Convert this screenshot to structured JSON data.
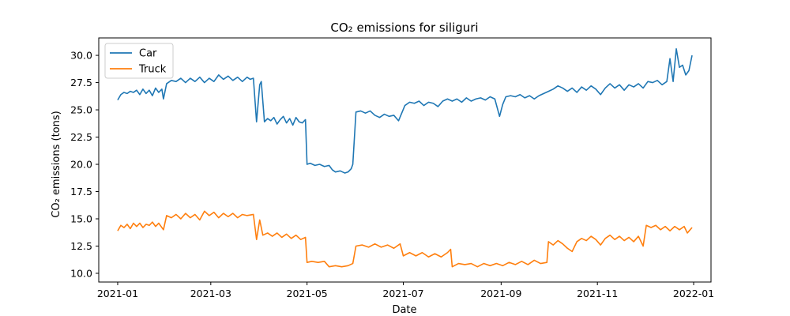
{
  "chart_data": {
    "type": "line",
    "title": "CO₂ emissions for siliguri",
    "xlabel": "Date",
    "ylabel": "CO₂ emissions (tons)",
    "xlim": [
      "2020-12-20",
      "2022-01-12"
    ],
    "ylim": [
      9.2,
      31.6
    ],
    "x_ticks": [
      {
        "date": "2021-01-01",
        "label": "2021-01"
      },
      {
        "date": "2021-03-01",
        "label": "2021-03"
      },
      {
        "date": "2021-05-01",
        "label": "2021-05"
      },
      {
        "date": "2021-07-01",
        "label": "2021-07"
      },
      {
        "date": "2021-09-01",
        "label": "2021-09"
      },
      {
        "date": "2021-11-01",
        "label": "2021-11"
      },
      {
        "date": "2022-01-01",
        "label": "2022-01"
      }
    ],
    "y_ticks": [
      {
        "value": 10.0,
        "label": "10.0"
      },
      {
        "value": 12.5,
        "label": "12.5"
      },
      {
        "value": 15.0,
        "label": "15.0"
      },
      {
        "value": 17.5,
        "label": "17.5"
      },
      {
        "value": 20.0,
        "label": "20.0"
      },
      {
        "value": 22.5,
        "label": "22.5"
      },
      {
        "value": 25.0,
        "label": "25.0"
      },
      {
        "value": 27.5,
        "label": "27.5"
      },
      {
        "value": 30.0,
        "label": "30.0"
      }
    ],
    "grid": false,
    "legend": "top-left",
    "series": [
      {
        "name": "Car",
        "color": "#1f77b4",
        "points": [
          [
            "2021-01-01",
            25.9
          ],
          [
            "2021-01-03",
            26.4
          ],
          [
            "2021-01-05",
            26.6
          ],
          [
            "2021-01-07",
            26.5
          ],
          [
            "2021-01-09",
            26.7
          ],
          [
            "2021-01-11",
            26.6
          ],
          [
            "2021-01-13",
            26.8
          ],
          [
            "2021-01-15",
            26.4
          ],
          [
            "2021-01-17",
            26.9
          ],
          [
            "2021-01-19",
            26.5
          ],
          [
            "2021-01-21",
            26.8
          ],
          [
            "2021-01-23",
            26.3
          ],
          [
            "2021-01-25",
            27.0
          ],
          [
            "2021-01-27",
            26.6
          ],
          [
            "2021-01-29",
            26.9
          ],
          [
            "2021-01-30",
            26.0
          ],
          [
            "2021-02-01",
            27.4
          ],
          [
            "2021-02-04",
            27.7
          ],
          [
            "2021-02-07",
            27.6
          ],
          [
            "2021-02-10",
            27.9
          ],
          [
            "2021-02-13",
            27.5
          ],
          [
            "2021-02-16",
            27.9
          ],
          [
            "2021-02-19",
            27.6
          ],
          [
            "2021-02-22",
            28.0
          ],
          [
            "2021-02-25",
            27.5
          ],
          [
            "2021-02-28",
            27.9
          ],
          [
            "2021-03-03",
            27.6
          ],
          [
            "2021-03-06",
            28.2
          ],
          [
            "2021-03-09",
            27.8
          ],
          [
            "2021-03-12",
            28.1
          ],
          [
            "2021-03-15",
            27.7
          ],
          [
            "2021-03-18",
            28.0
          ],
          [
            "2021-03-21",
            27.6
          ],
          [
            "2021-03-24",
            28.0
          ],
          [
            "2021-03-26",
            27.8
          ],
          [
            "2021-03-28",
            27.9
          ],
          [
            "2021-03-30",
            23.9
          ],
          [
            "2021-04-01",
            27.3
          ],
          [
            "2021-04-02",
            27.6
          ],
          [
            "2021-04-04",
            23.9
          ],
          [
            "2021-04-06",
            24.2
          ],
          [
            "2021-04-08",
            24.0
          ],
          [
            "2021-04-10",
            24.3
          ],
          [
            "2021-04-12",
            23.7
          ],
          [
            "2021-04-14",
            24.1
          ],
          [
            "2021-04-16",
            24.4
          ],
          [
            "2021-04-18",
            23.8
          ],
          [
            "2021-04-20",
            24.2
          ],
          [
            "2021-04-22",
            23.6
          ],
          [
            "2021-04-24",
            24.3
          ],
          [
            "2021-04-26",
            23.9
          ],
          [
            "2021-04-28",
            23.8
          ],
          [
            "2021-04-30",
            24.1
          ],
          [
            "2021-05-01",
            20.0
          ],
          [
            "2021-05-03",
            20.1
          ],
          [
            "2021-05-06",
            19.9
          ],
          [
            "2021-05-09",
            20.0
          ],
          [
            "2021-05-12",
            19.8
          ],
          [
            "2021-05-15",
            19.9
          ],
          [
            "2021-05-17",
            19.5
          ],
          [
            "2021-05-19",
            19.3
          ],
          [
            "2021-05-22",
            19.4
          ],
          [
            "2021-05-25",
            19.2
          ],
          [
            "2021-05-27",
            19.3
          ],
          [
            "2021-05-29",
            19.6
          ],
          [
            "2021-05-30",
            20.0
          ],
          [
            "2021-06-01",
            24.8
          ],
          [
            "2021-06-04",
            24.9
          ],
          [
            "2021-06-07",
            24.7
          ],
          [
            "2021-06-10",
            24.9
          ],
          [
            "2021-06-13",
            24.5
          ],
          [
            "2021-06-16",
            24.3
          ],
          [
            "2021-06-19",
            24.6
          ],
          [
            "2021-06-22",
            24.4
          ],
          [
            "2021-06-25",
            24.5
          ],
          [
            "2021-06-28",
            24.0
          ],
          [
            "2021-06-30",
            24.7
          ],
          [
            "2021-07-02",
            25.4
          ],
          [
            "2021-07-05",
            25.7
          ],
          [
            "2021-07-08",
            25.6
          ],
          [
            "2021-07-11",
            25.8
          ],
          [
            "2021-07-14",
            25.4
          ],
          [
            "2021-07-17",
            25.7
          ],
          [
            "2021-07-20",
            25.6
          ],
          [
            "2021-07-23",
            25.3
          ],
          [
            "2021-07-26",
            25.8
          ],
          [
            "2021-07-29",
            26.0
          ],
          [
            "2021-08-01",
            25.8
          ],
          [
            "2021-08-04",
            26.0
          ],
          [
            "2021-08-07",
            25.7
          ],
          [
            "2021-08-10",
            26.1
          ],
          [
            "2021-08-13",
            25.8
          ],
          [
            "2021-08-16",
            26.0
          ],
          [
            "2021-08-19",
            26.1
          ],
          [
            "2021-08-22",
            25.9
          ],
          [
            "2021-08-25",
            26.2
          ],
          [
            "2021-08-28",
            26.0
          ],
          [
            "2021-08-31",
            24.4
          ],
          [
            "2021-09-02",
            25.5
          ],
          [
            "2021-09-04",
            26.2
          ],
          [
            "2021-09-07",
            26.3
          ],
          [
            "2021-09-10",
            26.2
          ],
          [
            "2021-09-13",
            26.4
          ],
          [
            "2021-09-16",
            26.1
          ],
          [
            "2021-09-19",
            26.3
          ],
          [
            "2021-09-22",
            26.0
          ],
          [
            "2021-09-25",
            26.3
          ],
          [
            "2021-09-28",
            26.5
          ],
          [
            "2021-10-01",
            26.7
          ],
          [
            "2021-10-04",
            26.9
          ],
          [
            "2021-10-07",
            27.2
          ],
          [
            "2021-10-10",
            27.0
          ],
          [
            "2021-10-13",
            26.7
          ],
          [
            "2021-10-16",
            27.0
          ],
          [
            "2021-10-19",
            26.6
          ],
          [
            "2021-10-22",
            27.1
          ],
          [
            "2021-10-25",
            26.8
          ],
          [
            "2021-10-28",
            27.2
          ],
          [
            "2021-10-31",
            26.9
          ],
          [
            "2021-11-03",
            26.4
          ],
          [
            "2021-11-06",
            27.0
          ],
          [
            "2021-11-09",
            27.4
          ],
          [
            "2021-11-12",
            27.0
          ],
          [
            "2021-11-15",
            27.3
          ],
          [
            "2021-11-18",
            26.8
          ],
          [
            "2021-11-21",
            27.3
          ],
          [
            "2021-11-24",
            27.1
          ],
          [
            "2021-11-27",
            27.4
          ],
          [
            "2021-11-30",
            27.0
          ],
          [
            "2021-12-03",
            27.6
          ],
          [
            "2021-12-06",
            27.5
          ],
          [
            "2021-12-09",
            27.7
          ],
          [
            "2021-12-12",
            27.3
          ],
          [
            "2021-12-15",
            27.6
          ],
          [
            "2021-12-17",
            29.7
          ],
          [
            "2021-12-19",
            27.6
          ],
          [
            "2021-12-21",
            30.6
          ],
          [
            "2021-12-23",
            28.9
          ],
          [
            "2021-12-25",
            29.1
          ],
          [
            "2021-12-27",
            28.2
          ],
          [
            "2021-12-29",
            28.6
          ],
          [
            "2021-12-31",
            30.0
          ]
        ]
      },
      {
        "name": "Truck",
        "color": "#ff7f0e",
        "points": [
          [
            "2021-01-01",
            13.9
          ],
          [
            "2021-01-03",
            14.4
          ],
          [
            "2021-01-05",
            14.2
          ],
          [
            "2021-01-07",
            14.5
          ],
          [
            "2021-01-09",
            14.1
          ],
          [
            "2021-01-11",
            14.6
          ],
          [
            "2021-01-13",
            14.3
          ],
          [
            "2021-01-15",
            14.6
          ],
          [
            "2021-01-17",
            14.2
          ],
          [
            "2021-01-19",
            14.5
          ],
          [
            "2021-01-21",
            14.4
          ],
          [
            "2021-01-23",
            14.7
          ],
          [
            "2021-01-25",
            14.3
          ],
          [
            "2021-01-27",
            14.6
          ],
          [
            "2021-01-30",
            14.0
          ],
          [
            "2021-02-01",
            15.3
          ],
          [
            "2021-02-04",
            15.1
          ],
          [
            "2021-02-07",
            15.4
          ],
          [
            "2021-02-10",
            15.0
          ],
          [
            "2021-02-13",
            15.5
          ],
          [
            "2021-02-16",
            15.1
          ],
          [
            "2021-02-19",
            15.4
          ],
          [
            "2021-02-22",
            14.9
          ],
          [
            "2021-02-25",
            15.7
          ],
          [
            "2021-02-28",
            15.3
          ],
          [
            "2021-03-03",
            15.6
          ],
          [
            "2021-03-06",
            15.1
          ],
          [
            "2021-03-09",
            15.5
          ],
          [
            "2021-03-12",
            15.2
          ],
          [
            "2021-03-15",
            15.5
          ],
          [
            "2021-03-18",
            15.1
          ],
          [
            "2021-03-21",
            15.4
          ],
          [
            "2021-03-24",
            15.3
          ],
          [
            "2021-03-28",
            15.4
          ],
          [
            "2021-03-30",
            13.1
          ],
          [
            "2021-04-01",
            14.9
          ],
          [
            "2021-04-03",
            13.5
          ],
          [
            "2021-04-06",
            13.7
          ],
          [
            "2021-04-09",
            13.4
          ],
          [
            "2021-04-12",
            13.7
          ],
          [
            "2021-04-15",
            13.3
          ],
          [
            "2021-04-18",
            13.6
          ],
          [
            "2021-04-21",
            13.2
          ],
          [
            "2021-04-24",
            13.5
          ],
          [
            "2021-04-27",
            13.1
          ],
          [
            "2021-04-30",
            13.3
          ],
          [
            "2021-05-01",
            11.0
          ],
          [
            "2021-05-04",
            11.1
          ],
          [
            "2021-05-08",
            11.0
          ],
          [
            "2021-05-12",
            11.1
          ],
          [
            "2021-05-15",
            10.6
          ],
          [
            "2021-05-19",
            10.7
          ],
          [
            "2021-05-23",
            10.6
          ],
          [
            "2021-05-27",
            10.7
          ],
          [
            "2021-05-30",
            10.9
          ],
          [
            "2021-06-01",
            12.5
          ],
          [
            "2021-06-05",
            12.6
          ],
          [
            "2021-06-09",
            12.4
          ],
          [
            "2021-06-13",
            12.7
          ],
          [
            "2021-06-17",
            12.4
          ],
          [
            "2021-06-21",
            12.6
          ],
          [
            "2021-06-25",
            12.3
          ],
          [
            "2021-06-29",
            12.7
          ],
          [
            "2021-07-01",
            11.6
          ],
          [
            "2021-07-05",
            11.9
          ],
          [
            "2021-07-09",
            11.6
          ],
          [
            "2021-07-13",
            11.9
          ],
          [
            "2021-07-17",
            11.5
          ],
          [
            "2021-07-21",
            11.8
          ],
          [
            "2021-07-25",
            11.5
          ],
          [
            "2021-07-29",
            11.9
          ],
          [
            "2021-07-31",
            12.2
          ],
          [
            "2021-08-01",
            10.6
          ],
          [
            "2021-08-05",
            10.9
          ],
          [
            "2021-08-09",
            10.8
          ],
          [
            "2021-08-13",
            10.9
          ],
          [
            "2021-08-17",
            10.6
          ],
          [
            "2021-08-21",
            10.9
          ],
          [
            "2021-08-25",
            10.7
          ],
          [
            "2021-08-29",
            10.9
          ],
          [
            "2021-09-02",
            10.7
          ],
          [
            "2021-09-06",
            11.0
          ],
          [
            "2021-09-10",
            10.8
          ],
          [
            "2021-09-14",
            11.1
          ],
          [
            "2021-09-18",
            10.8
          ],
          [
            "2021-09-22",
            11.2
          ],
          [
            "2021-09-26",
            10.9
          ],
          [
            "2021-09-30",
            11.0
          ],
          [
            "2021-10-01",
            12.9
          ],
          [
            "2021-10-04",
            12.6
          ],
          [
            "2021-10-07",
            13.0
          ],
          [
            "2021-10-10",
            12.7
          ],
          [
            "2021-10-13",
            12.3
          ],
          [
            "2021-10-16",
            12.0
          ],
          [
            "2021-10-19",
            12.9
          ],
          [
            "2021-10-22",
            13.2
          ],
          [
            "2021-10-25",
            13.0
          ],
          [
            "2021-10-28",
            13.4
          ],
          [
            "2021-10-31",
            13.1
          ],
          [
            "2021-11-03",
            12.6
          ],
          [
            "2021-11-06",
            13.2
          ],
          [
            "2021-11-09",
            13.5
          ],
          [
            "2021-11-12",
            13.1
          ],
          [
            "2021-11-15",
            13.4
          ],
          [
            "2021-11-18",
            13.0
          ],
          [
            "2021-11-21",
            13.3
          ],
          [
            "2021-11-24",
            12.9
          ],
          [
            "2021-11-27",
            13.4
          ],
          [
            "2021-11-30",
            12.5
          ],
          [
            "2021-12-02",
            14.4
          ],
          [
            "2021-12-05",
            14.2
          ],
          [
            "2021-12-08",
            14.4
          ],
          [
            "2021-12-11",
            14.0
          ],
          [
            "2021-12-14",
            14.3
          ],
          [
            "2021-12-17",
            13.9
          ],
          [
            "2021-12-20",
            14.3
          ],
          [
            "2021-12-23",
            14.0
          ],
          [
            "2021-12-26",
            14.3
          ],
          [
            "2021-12-28",
            13.7
          ],
          [
            "2021-12-31",
            14.2
          ]
        ]
      }
    ]
  }
}
